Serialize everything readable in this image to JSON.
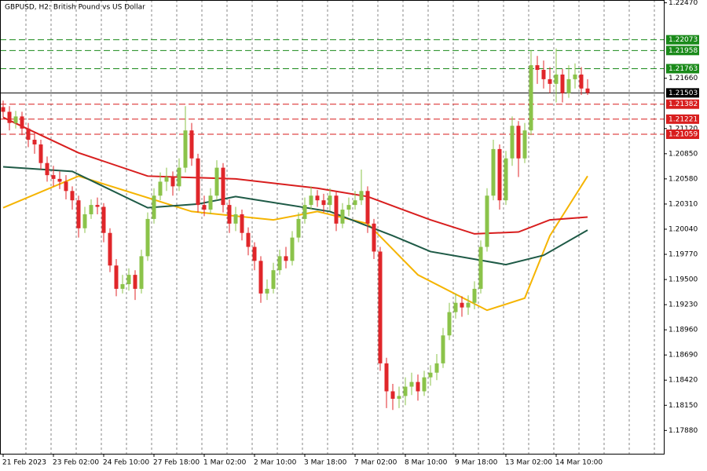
{
  "chart_data": {
    "type": "candlestick",
    "title": "GBPUSD, H2:  British Pound vs US Dollar",
    "categories": [
      "21 Feb 2023",
      null,
      null,
      null,
      null,
      null,
      null,
      null,
      "23 Feb 02:00",
      null,
      null,
      null,
      null,
      null,
      null,
      null,
      "24 Feb 10:00",
      null,
      null,
      null,
      null,
      null,
      null,
      null,
      "27 Feb 18:00",
      null,
      null,
      null,
      null,
      null,
      null,
      null,
      "1 Mar 02:00",
      null,
      null,
      null,
      null,
      null,
      null,
      null,
      "2 Mar 10:00",
      null,
      null,
      null,
      null,
      null,
      null,
      null,
      "3 Mar 18:00",
      null,
      null,
      null,
      null,
      null,
      null,
      null,
      "7 Mar 02:00",
      null,
      null,
      null,
      null,
      null,
      null,
      null,
      "8 Mar 10:00",
      null,
      null,
      null,
      null,
      null,
      null,
      null,
      "9 Mar 18:00",
      null,
      null,
      null,
      null,
      null,
      null,
      null,
      "13 Mar 02:00",
      null,
      null,
      null,
      null,
      null,
      null,
      null,
      "14 Mar 10:00",
      null,
      null,
      null,
      null,
      null
    ],
    "open": [
      1.2135,
      1.213,
      1.2118,
      1.2125,
      1.2112,
      1.21,
      1.2095,
      1.2075,
      1.2062,
      1.2058,
      1.2055,
      1.2045,
      1.2035,
      1.2005,
      1.202,
      1.203,
      1.2028,
      1.2,
      1.1965,
      1.194,
      1.1945,
      1.1955,
      1.194,
      1.1975,
      1.2015,
      1.204,
      1.2055,
      1.206,
      1.205,
      1.207,
      1.211,
      1.208,
      1.203,
      1.2025,
      1.204,
      1.207,
      1.203,
      1.201,
      1.202,
      1.2,
      1.1985,
      1.197,
      1.1935,
      1.194,
      1.196,
      1.1975,
      1.197,
      1.1995,
      1.2015,
      1.203,
      1.204,
      1.2035,
      1.203,
      1.204,
      1.201,
      1.2025,
      1.203,
      1.2035,
      1.2045,
      1.201,
      1.198,
      1.186,
      1.183,
      1.1822,
      1.1825,
      1.1835,
      1.184,
      1.183,
      1.1845,
      1.185,
      1.186,
      1.189,
      1.1915,
      1.1925,
      1.192,
      1.1925,
      1.194,
      1.1985,
      1.204,
      1.209,
      1.2035,
      1.208,
      1.2115,
      1.208,
      1.211,
      1.218,
      1.2175,
      1.2165,
      1.216,
      1.217,
      1.215,
      1.2165,
      1.217,
      1.2155
    ],
    "high": [
      1.2142,
      1.2136,
      1.2131,
      1.213,
      1.2118,
      1.2108,
      1.21,
      1.2082,
      1.2072,
      1.2066,
      1.2062,
      1.205,
      1.204,
      1.2028,
      1.2036,
      1.2038,
      1.2032,
      1.2005,
      1.1972,
      1.1955,
      1.1962,
      1.196,
      1.1982,
      1.2022,
      1.2048,
      1.2065,
      1.207,
      1.2066,
      1.208,
      1.2136,
      1.2118,
      1.2085,
      1.204,
      1.2048,
      1.2078,
      1.2075,
      1.2036,
      1.2028,
      1.2025,
      1.2006,
      1.199,
      1.1975,
      1.195,
      1.1968,
      1.1982,
      1.1985,
      1.2002,
      1.2022,
      1.2038,
      1.205,
      1.2046,
      1.2042,
      1.2048,
      1.2045,
      1.2032,
      1.2038,
      1.2045,
      1.2068,
      1.205,
      1.2015,
      1.1985,
      1.1866,
      1.1838,
      1.1835,
      1.1845,
      1.185,
      1.1848,
      1.1852,
      1.1858,
      1.187,
      1.1898,
      1.1925,
      1.1935,
      1.1932,
      1.1933,
      1.1948,
      1.1992,
      1.2048,
      1.21,
      1.2095,
      1.2088,
      1.2125,
      1.212,
      1.2118,
      1.2196,
      1.219,
      1.2185,
      1.2178,
      1.2198,
      1.2176,
      1.218,
      1.2182,
      1.2178,
      1.2165
    ],
    "low": [
      1.2124,
      1.211,
      1.2112,
      1.2105,
      1.2092,
      1.2085,
      1.2068,
      1.2055,
      1.205,
      1.2047,
      1.2036,
      1.2025,
      1.1995,
      1.2,
      1.2015,
      1.202,
      1.199,
      1.1958,
      1.1932,
      1.1935,
      1.1938,
      1.1928,
      1.1935,
      1.197,
      1.201,
      1.2035,
      1.2045,
      1.204,
      1.2045,
      1.2065,
      1.2072,
      1.2022,
      1.2018,
      1.202,
      1.2035,
      1.2022,
      1.2,
      1.2002,
      1.1992,
      1.1976,
      1.196,
      1.1925,
      1.1928,
      1.1935,
      1.1955,
      1.1962,
      1.1965,
      1.199,
      1.201,
      1.2025,
      1.2028,
      1.2022,
      1.2024,
      1.2002,
      1.2005,
      1.2018,
      1.2025,
      1.203,
      1.2,
      1.1972,
      1.1852,
      1.1812,
      1.181,
      1.1812,
      1.1815,
      1.1826,
      1.182,
      1.1825,
      1.1836,
      1.1842,
      1.1855,
      1.1885,
      1.1908,
      1.191,
      1.1912,
      1.1918,
      1.1935,
      1.198,
      1.2035,
      1.2025,
      1.203,
      1.2072,
      1.206,
      1.2075,
      1.2105,
      1.216,
      1.2155,
      1.215,
      1.214,
      1.214,
      1.2145,
      1.2155,
      1.2148,
      1.2148
    ],
    "close": [
      1.213,
      1.2118,
      1.2125,
      1.2112,
      1.21,
      1.2095,
      1.2075,
      1.2062,
      1.2058,
      1.2055,
      1.2045,
      1.2035,
      1.2005,
      1.202,
      1.203,
      1.2028,
      1.2,
      1.1965,
      1.194,
      1.1945,
      1.1955,
      1.194,
      1.1975,
      1.2015,
      1.204,
      1.2055,
      1.206,
      1.205,
      1.207,
      1.211,
      1.208,
      1.203,
      1.2025,
      1.204,
      1.207,
      1.203,
      1.201,
      1.202,
      1.2,
      1.1985,
      1.197,
      1.1935,
      1.194,
      1.196,
      1.1975,
      1.197,
      1.1995,
      1.2015,
      1.203,
      1.204,
      1.2035,
      1.203,
      1.204,
      1.201,
      1.2025,
      1.203,
      1.2035,
      1.2045,
      1.201,
      1.198,
      1.186,
      1.183,
      1.1822,
      1.1825,
      1.1835,
      1.184,
      1.183,
      1.1845,
      1.185,
      1.186,
      1.189,
      1.1915,
      1.1925,
      1.192,
      1.1925,
      1.194,
      1.1985,
      1.204,
      1.209,
      1.2035,
      1.208,
      1.2115,
      1.208,
      1.211,
      1.218,
      1.2175,
      1.2165,
      1.216,
      1.217,
      1.215,
      1.2165,
      1.217,
      1.2155,
      1.21503
    ],
    "up_color": "#8bc34a",
    "down_color": "#e0262a",
    "series": [
      {
        "color": "#f5b400",
        "x": [
          0,
          12,
          30,
          43,
          50,
          58,
          66,
          77,
          83,
          87,
          93
        ],
        "values": [
          1.2027,
          1.2061,
          1.2023,
          1.2014,
          1.2023,
          1.201,
          1.1955,
          1.1917,
          1.193,
          1.1997,
          1.2061
        ]
      },
      {
        "color": "#1e5a46",
        "x": [
          0,
          11,
          23,
          31,
          37,
          52,
          62,
          68,
          80,
          86,
          93
        ],
        "values": [
          1.2071,
          1.2066,
          1.2027,
          1.2031,
          1.2039,
          1.2023,
          1.1997,
          1.198,
          1.1966,
          1.1976,
          1.2003
        ]
      },
      {
        "color": "#d81e1e",
        "x": [
          0,
          12,
          23,
          37,
          50,
          58,
          68,
          75,
          82,
          87,
          93
        ],
        "values": [
          1.2124,
          1.2086,
          1.2061,
          1.2058,
          1.2048,
          1.2039,
          1.2014,
          1.1999,
          1.2001,
          1.2014,
          1.2017
        ]
      }
    ],
    "levels": [
      {
        "value": 1.22073,
        "label": "1.22073",
        "color": "#1a8a1a",
        "style": "dashed"
      },
      {
        "value": 1.21958,
        "label": "1.21958",
        "color": "#1a8a1a",
        "style": "dashed"
      },
      {
        "value": 1.21763,
        "label": "1.21763",
        "color": "#1a8a1a",
        "style": "dashed"
      },
      {
        "value": 1.21503,
        "label": "1.21503",
        "color": "#000000",
        "style": "solid"
      },
      {
        "value": 1.21382,
        "label": "1.21382",
        "color": "#d81e1e",
        "style": "dashed"
      },
      {
        "value": 1.21221,
        "label": "1.21221",
        "color": "#d81e1e",
        "style": "dashed"
      },
      {
        "value": 1.21059,
        "label": "1.21059",
        "color": "#d81e1e",
        "style": "dashed"
      }
    ],
    "ylim": [
      1.1763,
      1.225
    ],
    "yticks": [
      {
        "value": 1.2247,
        "label": "1.22470"
      },
      {
        "value": 1.2166,
        "label": "1.21660"
      },
      {
        "value": 1.2112,
        "label": "1.21120"
      },
      {
        "value": 1.2085,
        "label": "1.20850"
      },
      {
        "value": 1.2058,
        "label": "1.20580"
      },
      {
        "value": 1.2031,
        "label": "1.20310"
      },
      {
        "value": 1.2004,
        "label": "1.20040"
      },
      {
        "value": 1.1977,
        "label": "1.19770"
      },
      {
        "value": 1.195,
        "label": "1.19500"
      },
      {
        "value": 1.1923,
        "label": "1.19230"
      },
      {
        "value": 1.1896,
        "label": "1.18960"
      },
      {
        "value": 1.1869,
        "label": "1.18690"
      },
      {
        "value": 1.1842,
        "label": "1.18420"
      },
      {
        "value": 1.1815,
        "label": "1.18150"
      },
      {
        "value": 1.1788,
        "label": "1.17880"
      }
    ],
    "grid": true
  }
}
